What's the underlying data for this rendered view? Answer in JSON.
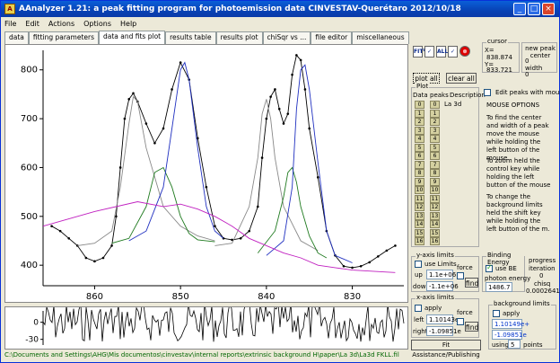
{
  "title": "AAnalyzer 1.21: a peak fitting program for photoemission data       CINVESTAV-Querétaro   2012/10/18",
  "window_buttons": [
    "_",
    "□",
    "×"
  ],
  "menu": [
    "File",
    "Edit",
    "Actions",
    "Options",
    "Help"
  ],
  "tabs": [
    "data",
    "fitting parameters",
    "data and fits plot",
    "results table",
    "results plot",
    "chiSqr vs ...",
    "file editor",
    "miscellaneous"
  ],
  "active_tab": 2,
  "toolbar": {
    "icons": [
      "fit-half-icon",
      "fit-checkmark-icon",
      "fit-all-icon",
      "fit-all-checkmark-icon",
      "stop-icon"
    ],
    "icon_glyphs": [
      "FIT½",
      "✓",
      "ALL",
      "✓",
      "⊗"
    ]
  },
  "cursor": {
    "label": "cursor",
    "x_label": "X=",
    "x_value": "838.874",
    "y_label": "Y=",
    "y_value": "833.721"
  },
  "new_peak": {
    "label": "new peak center",
    "center": "0",
    "width_label": "width",
    "width": "0"
  },
  "buttons": {
    "plot_all": "plot all",
    "clear_all": "clear all"
  },
  "plot_group": {
    "label": "Plot",
    "col_data": "Data",
    "col_peaks": "peaks",
    "col_desc": "Description",
    "row0_desc": "La 3d"
  },
  "peak_rows": [
    "0",
    "1",
    "2",
    "3",
    "4",
    "5",
    "6",
    "7",
    "8",
    "9",
    "10",
    "11",
    "12",
    "13",
    "14",
    "15",
    "16"
  ],
  "edit_peaks": {
    "label": "Edit peaks with mouse",
    "checked": false
  },
  "mouse_options": {
    "title": "MOUSE OPTIONS",
    "p1": "To find the center and width of a peak move the mouse while holding the left button of the mouse",
    "p2": "To zoom held the control key while holding the left button of the mouse",
    "p3": "To change the background limits held the shift key while holding the left button of the m."
  },
  "y_axis": {
    "label": "y-axis limits",
    "use_limits": "use Limits",
    "up_label": "up",
    "up": "1.1e+06",
    "down_label": "down",
    "down": "-1.1e+06",
    "force": "force",
    "find": "find"
  },
  "x_axis": {
    "label": "x-axis limits",
    "apply": "apply",
    "left_label": "left",
    "left": "1.10143e",
    "right_label": "right",
    "right": "-1.09851e",
    "force": "force",
    "find": "find"
  },
  "binding_energy": {
    "label": "Binding Energy",
    "use_be": "use BE",
    "photon_label": "photon energy",
    "photon": "1486.7"
  },
  "progress": {
    "label": "progress",
    "iteration_label": "iteration",
    "iteration": "0",
    "chisq_label": "chisq",
    "chisq": "0.0002641"
  },
  "background_limits": {
    "label": "background limits",
    "apply": "apply",
    "v1": "1.10149e+",
    "v2": "-1.09851e",
    "using": "using",
    "points": "5",
    "points_label": "points"
  },
  "fit_assist": "Fit Assistance/Publishing",
  "status": "C:\\Documents and Settings\\AHG\\Mis documentos\\cinvestav\\internal reports\\extrinsic background H\\paper\\La 3d\\La3d FKLL.fil",
  "chart_data": {
    "type": "line",
    "xlabel": "",
    "ylabel": "",
    "x_reversed": true,
    "xlim": [
      866,
      824
    ],
    "ylim": [
      358,
      840
    ],
    "x_ticks": [
      860,
      850,
      840,
      830
    ],
    "y_ticks": [
      400,
      500,
      600,
      700,
      800
    ],
    "series": [
      {
        "color": "#000000",
        "style": "points",
        "x": [
          865,
          864,
          863,
          862,
          861,
          860,
          859,
          858,
          857.5,
          857,
          856.5,
          856,
          855.5,
          855,
          854,
          853,
          852,
          851,
          850,
          849,
          848,
          847,
          846,
          845,
          844,
          843,
          842,
          841,
          840.5,
          840,
          839.5,
          839,
          838.5,
          838,
          837.5,
          837,
          836.5,
          836,
          835.5,
          835,
          834,
          833,
          832,
          831,
          830,
          829,
          828,
          827,
          826,
          825
        ],
        "y": [
          480,
          470,
          455,
          440,
          415,
          408,
          415,
          440,
          500,
          600,
          700,
          740,
          752,
          735,
          690,
          650,
          680,
          760,
          815,
          780,
          660,
          560,
          480,
          455,
          452,
          455,
          470,
          520,
          620,
          700,
          745,
          760,
          720,
          690,
          710,
          790,
          830,
          820,
          760,
          680,
          580,
          470,
          420,
          398,
          395,
          398,
          406,
          418,
          430,
          440
        ]
      },
      {
        "color": "#000000",
        "style": "line",
        "x": [
          865,
          864,
          863,
          862,
          861,
          860,
          859,
          858,
          857.5,
          857,
          856.5,
          856,
          855.5,
          855,
          854,
          853,
          852,
          851,
          850,
          849,
          848,
          847,
          846,
          845,
          844,
          843,
          842,
          841,
          840.5,
          840,
          839.5,
          839,
          838.5,
          838,
          837.5,
          837,
          836.5,
          836,
          835.5,
          835,
          834,
          833,
          832,
          831,
          830,
          829,
          828,
          827,
          826,
          825
        ],
        "y": [
          480,
          470,
          455,
          440,
          415,
          408,
          415,
          440,
          500,
          600,
          700,
          740,
          752,
          735,
          690,
          650,
          680,
          760,
          815,
          780,
          660,
          560,
          480,
          455,
          452,
          455,
          470,
          520,
          620,
          700,
          745,
          760,
          720,
          690,
          710,
          790,
          830,
          820,
          760,
          680,
          580,
          470,
          420,
          398,
          395,
          398,
          406,
          418,
          430,
          440
        ]
      },
      {
        "color": "#888888",
        "style": "line",
        "x": [
          862,
          860,
          858,
          857,
          856,
          855.5,
          855,
          854,
          852,
          850,
          848,
          846
        ],
        "y": [
          440,
          445,
          470,
          560,
          690,
          745,
          735,
          640,
          520,
          480,
          460,
          450
        ]
      },
      {
        "color": "#1f7a1f",
        "style": "line",
        "x": [
          858,
          856,
          854,
          853,
          852,
          851,
          850,
          849,
          848,
          846
        ],
        "y": [
          445,
          455,
          520,
          590,
          600,
          560,
          500,
          465,
          452,
          448
        ]
      },
      {
        "color": "#2030c0",
        "style": "line",
        "x": [
          856,
          854,
          852,
          851,
          850,
          849.5,
          849,
          848,
          847,
          846,
          845
        ],
        "y": [
          450,
          470,
          560,
          680,
          800,
          815,
          780,
          640,
          520,
          470,
          455
        ]
      },
      {
        "color": "#888888",
        "style": "line",
        "x": [
          846,
          844,
          842,
          841,
          840.5,
          840,
          839.5,
          839,
          838,
          836,
          834
        ],
        "y": [
          440,
          445,
          520,
          620,
          710,
          740,
          700,
          620,
          520,
          450,
          430
        ]
      },
      {
        "color": "#1f7a1f",
        "style": "line",
        "x": [
          841,
          839,
          838,
          837.5,
          837,
          836.5,
          836,
          835,
          834,
          833
        ],
        "y": [
          425,
          470,
          540,
          590,
          600,
          570,
          520,
          460,
          425,
          415
        ]
      },
      {
        "color": "#2030c0",
        "style": "line",
        "x": [
          840,
          838,
          837,
          836.5,
          836,
          835.5,
          835,
          834,
          833,
          832,
          830
        ],
        "y": [
          420,
          450,
          560,
          720,
          800,
          810,
          760,
          610,
          470,
          420,
          405
        ]
      },
      {
        "color": "#c020c0",
        "style": "line",
        "x": [
          866,
          860,
          855,
          852,
          850,
          848,
          846,
          844,
          842,
          840,
          838,
          836,
          834,
          832,
          830,
          828,
          826,
          825
        ],
        "y": [
          480,
          510,
          530,
          520,
          525,
          515,
          500,
          480,
          455,
          440,
          425,
          415,
          400,
          395,
          390,
          388,
          386,
          385
        ]
      }
    ],
    "residual_yticks": [
      0,
      -30
    ],
    "residual_ylim": [
      -40,
      20
    ]
  }
}
